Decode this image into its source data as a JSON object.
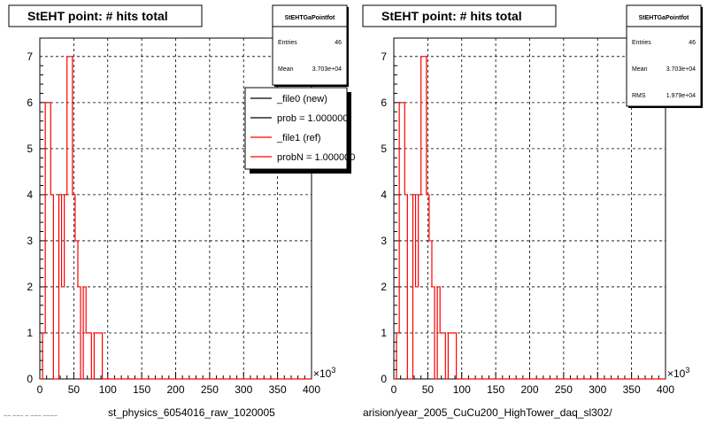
{
  "footer": {
    "left_caption": "st_physics_6054016_raw_1020005",
    "right_caption": "arision/year_2005_CuCu200_HighTower_daq_sl302/",
    "corner_text": "~~ ~~~ ~ ~~~ ~~~~"
  },
  "colors": {
    "red": "#ff0000",
    "black": "#000000",
    "grid": "#000000",
    "background": "#ffffff"
  },
  "chart_data": [
    {
      "type": "histogram",
      "title": "StEHT point: # hits total",
      "x_exponent_label": "×10^3",
      "xlim": [
        0,
        400
      ],
      "ylim": [
        0,
        7.4
      ],
      "x_ticks": [
        0,
        50,
        100,
        150,
        200,
        250,
        300,
        350,
        400
      ],
      "y_ticks": [
        0,
        1,
        2,
        3,
        4,
        5,
        6,
        7
      ],
      "grid": true,
      "bin_width": 4,
      "series": [
        {
          "name": "_file1 (ref)",
          "color": "#ff0000",
          "counts": [
            0,
            1,
            6,
            6,
            4,
            0,
            0,
            4,
            2,
            4,
            7,
            7,
            4,
            3,
            2,
            0,
            2,
            1,
            1,
            0,
            1,
            1,
            1,
            0,
            0,
            0,
            0,
            0,
            0,
            0,
            0,
            0,
            0,
            0,
            0,
            0,
            0,
            0,
            0,
            0,
            0,
            0,
            0,
            0,
            0,
            0,
            0,
            0,
            0,
            0,
            0,
            0,
            0,
            0,
            0,
            0,
            0,
            0,
            0,
            0,
            0,
            0,
            0,
            0,
            0,
            0,
            0,
            0,
            0,
            0,
            0,
            0,
            0,
            0,
            0,
            0,
            0,
            0,
            0,
            0,
            0,
            0,
            0,
            0,
            0,
            0,
            0,
            0,
            0,
            0,
            0,
            0,
            0,
            0,
            0,
            0,
            0,
            0,
            0,
            0
          ]
        }
      ],
      "stats_box": {
        "title": "StEHTGaPointfot",
        "rows": [
          {
            "label": "Entries",
            "value": "46"
          },
          {
            "label": "Mean",
            "value": "3.703e+04"
          }
        ]
      },
      "legend": {
        "position": "top-right",
        "entries": [
          {
            "label": "_file0 (new)",
            "color": "#000000"
          },
          {
            "label": "prob = 1.000000",
            "color": "#000000"
          },
          {
            "label": "_file1 (ref)",
            "color": "#ff0000"
          },
          {
            "label": "probN = 1.000000",
            "color": "#ff0000"
          }
        ]
      }
    },
    {
      "type": "histogram",
      "title": "StEHT point: # hits total",
      "x_exponent_label": "×10^3",
      "xlim": [
        0,
        400
      ],
      "ylim": [
        0,
        7.4
      ],
      "x_ticks": [
        0,
        50,
        100,
        150,
        200,
        250,
        300,
        350,
        400
      ],
      "y_ticks": [
        0,
        1,
        2,
        3,
        4,
        5,
        6,
        7
      ],
      "grid": true,
      "bin_width": 4,
      "series": [
        {
          "name": "_file1 (ref)",
          "color": "#ff0000",
          "counts": [
            0,
            1,
            6,
            6,
            4,
            0,
            0,
            4,
            2,
            4,
            7,
            7,
            4,
            3,
            2,
            0,
            2,
            1,
            1,
            0,
            1,
            1,
            1,
            0,
            0,
            0,
            0,
            0,
            0,
            0,
            0,
            0,
            0,
            0,
            0,
            0,
            0,
            0,
            0,
            0,
            0,
            0,
            0,
            0,
            0,
            0,
            0,
            0,
            0,
            0,
            0,
            0,
            0,
            0,
            0,
            0,
            0,
            0,
            0,
            0,
            0,
            0,
            0,
            0,
            0,
            0,
            0,
            0,
            0,
            0,
            0,
            0,
            0,
            0,
            0,
            0,
            0,
            0,
            0,
            0,
            0,
            0,
            0,
            0,
            0,
            0,
            0,
            0,
            0,
            0,
            0,
            0,
            0,
            0,
            0,
            0,
            0,
            0,
            0,
            0
          ]
        }
      ],
      "stats_box": {
        "title": "StEHTGaPointfot",
        "rows": [
          {
            "label": "Entries",
            "value": "46"
          },
          {
            "label": "Mean",
            "value": "3.703e+04"
          },
          {
            "label": "RMS",
            "value": "1.979e+04"
          }
        ]
      }
    }
  ]
}
